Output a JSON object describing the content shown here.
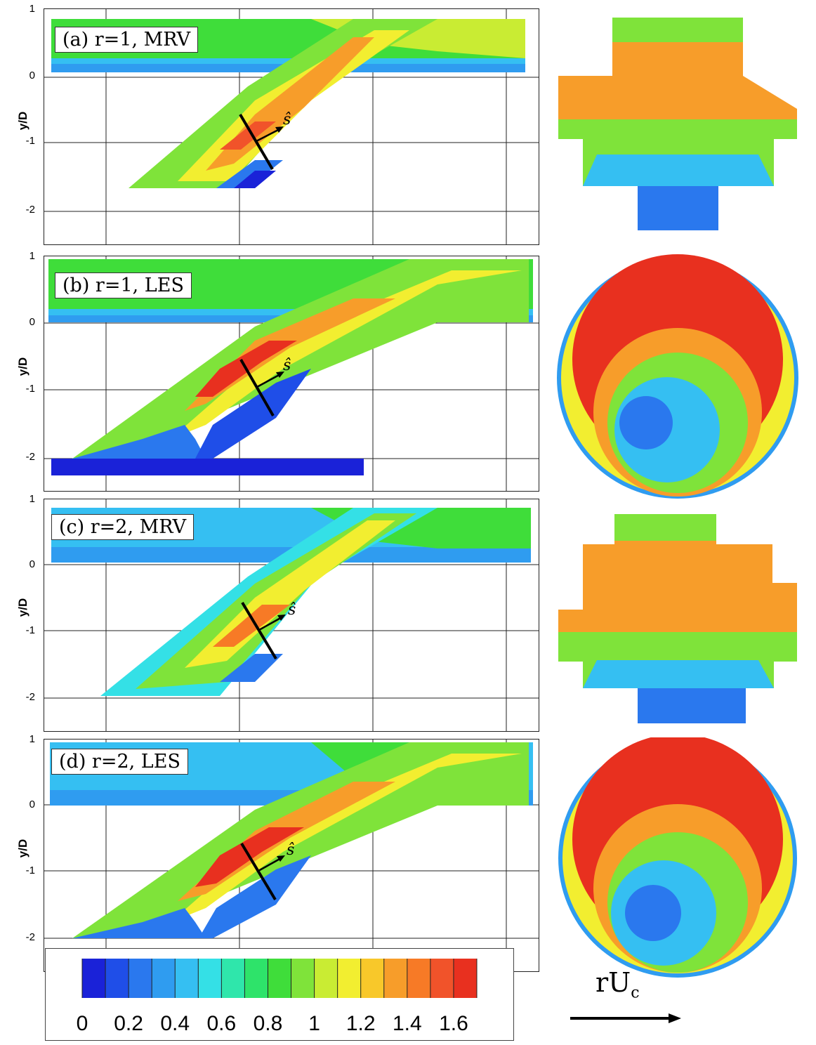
{
  "panels": [
    {
      "label": "(a) r=1, MRV",
      "type": "MRV",
      "r": 1
    },
    {
      "label": "(b) r=1, LES",
      "type": "LES",
      "r": 1
    },
    {
      "label": "(c) r=2, MRV",
      "type": "MRV",
      "r": 2
    },
    {
      "label": "(d) r=2, LES",
      "type": "LES",
      "r": 2
    }
  ],
  "y_axis": {
    "label": "y/D",
    "ticks": [
      "1",
      "0",
      "-1",
      "-2"
    ]
  },
  "annotation": {
    "s_hat": "ŝ"
  },
  "colorbar": {
    "tick_labels": [
      "0",
      "0.2",
      "0.4",
      "0.6",
      "0.8",
      "1",
      "1.2",
      "1.4",
      "1.6"
    ],
    "range": [
      0,
      1.7
    ],
    "colors": [
      "#1a22d8",
      "#1f4ee8",
      "#2a78ee",
      "#2f9cf0",
      "#35bff2",
      "#34e0e6",
      "#2fe6ab",
      "#2ee36a",
      "#3fdd3a",
      "#7fe33a",
      "#c9ec33",
      "#f2ee30",
      "#f8c82a",
      "#f79d2a",
      "#f77a26",
      "#f1532a",
      "#e8301f"
    ]
  },
  "vector_label": {
    "main": "rU",
    "sub": "c"
  }
}
